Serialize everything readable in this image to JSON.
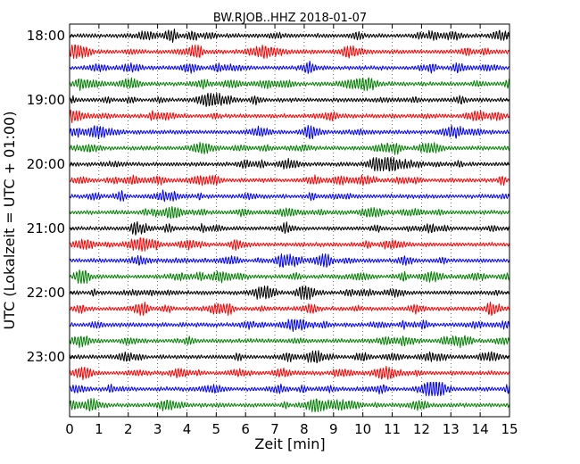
{
  "chart_data": {
    "type": "line",
    "title": "BW.RJOB..HHZ 2018-01-07",
    "xlabel": "Zeit  [min]",
    "ylabel": "UTC (Lokalzeit = UTC + 01:00)",
    "xlim": [
      0,
      15
    ],
    "x_ticks": [
      "0",
      "1",
      "2",
      "3",
      "4",
      "5",
      "6",
      "7",
      "8",
      "9",
      "10",
      "11",
      "12",
      "13",
      "14",
      "15"
    ],
    "y_tick_labels": [
      "18:00",
      "19:00",
      "20:00",
      "21:00",
      "22:00",
      "23:00"
    ],
    "trace_minutes_per_row": 15,
    "grid": true,
    "colors": [
      "#000000",
      "#ff0000",
      "#0000ff",
      "#008000"
    ],
    "rows": [
      {
        "start": "18:00",
        "color": "#000000"
      },
      {
        "start": "18:15",
        "color": "#ff0000"
      },
      {
        "start": "18:30",
        "color": "#0000ff"
      },
      {
        "start": "18:45",
        "color": "#008000"
      },
      {
        "start": "19:00",
        "color": "#000000"
      },
      {
        "start": "19:15",
        "color": "#ff0000"
      },
      {
        "start": "19:30",
        "color": "#0000ff"
      },
      {
        "start": "19:45",
        "color": "#008000"
      },
      {
        "start": "20:00",
        "color": "#000000"
      },
      {
        "start": "20:15",
        "color": "#ff0000"
      },
      {
        "start": "20:30",
        "color": "#0000ff"
      },
      {
        "start": "20:45",
        "color": "#008000"
      },
      {
        "start": "21:00",
        "color": "#000000"
      },
      {
        "start": "21:15",
        "color": "#ff0000"
      },
      {
        "start": "21:30",
        "color": "#0000ff"
      },
      {
        "start": "21:45",
        "color": "#008000"
      },
      {
        "start": "22:00",
        "color": "#000000"
      },
      {
        "start": "22:15",
        "color": "#ff0000"
      },
      {
        "start": "22:30",
        "color": "#0000ff"
      },
      {
        "start": "22:45",
        "color": "#008000"
      },
      {
        "start": "23:00",
        "color": "#000000"
      },
      {
        "start": "23:15",
        "color": "#ff0000"
      },
      {
        "start": "23:30",
        "color": "#0000ff"
      },
      {
        "start": "23:45",
        "color": "#008000"
      }
    ]
  }
}
